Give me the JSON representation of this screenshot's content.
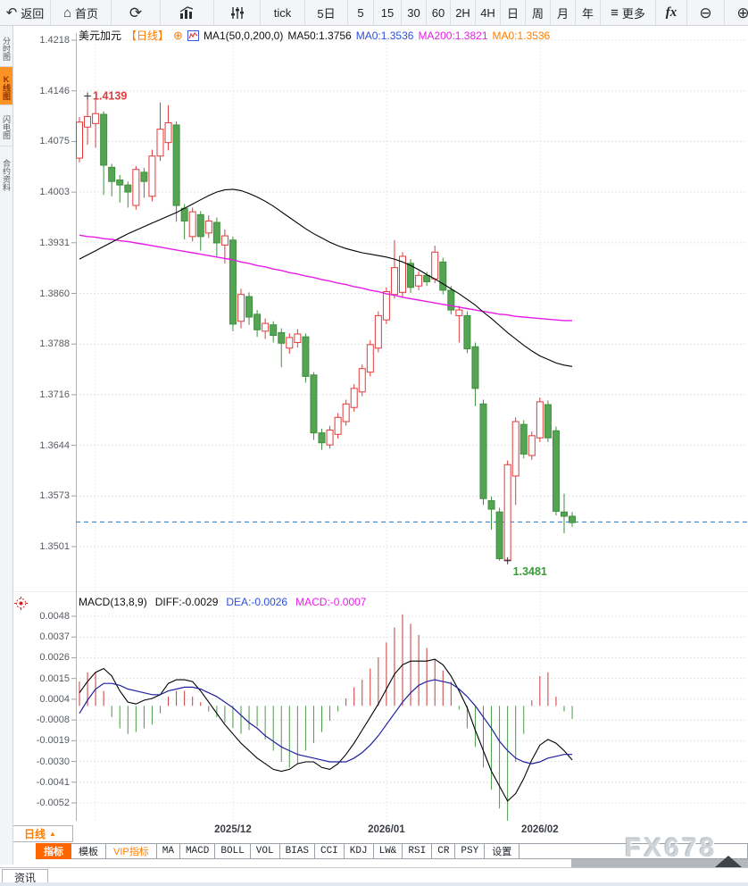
{
  "toolbar": {
    "back_label": "返回",
    "home_label": "首页",
    "tick_label": "tick",
    "intervals": [
      "5日",
      "5",
      "15",
      "30",
      "60",
      "2H",
      "4H",
      "日",
      "周",
      "月",
      "年"
    ],
    "more_label": "更多",
    "fx_label": "fx"
  },
  "icons": {
    "back": "↶",
    "home": "⌂",
    "refresh": "⟳",
    "menu": "≡",
    "zoom_out": "⊖",
    "zoom_in": "⊕",
    "add_circle": "⊕",
    "up_triangle": "▲"
  },
  "sidebar": {
    "items": [
      {
        "label": "分时图",
        "active": false
      },
      {
        "label": "K线图",
        "active": true
      },
      {
        "label": "闪电图",
        "active": false
      },
      {
        "label": "合约资料",
        "active": false
      }
    ]
  },
  "price_header": {
    "symbol": "美元加元",
    "period_tag": "【日线】",
    "ma_summary": "MA1(50,0,200,0)",
    "ma50": "MA50:1.3756",
    "ma0_blue": "MA0:1.3536",
    "ma200": "MA200:1.3821",
    "ma0_orange": "MA0:1.3536"
  },
  "macd_header": {
    "title": "MACD(13,8,9)",
    "diff": "DIFF:-0.0029",
    "dea": "DEA:-0.0026",
    "macd": "MACD:-0.0007"
  },
  "bottom": {
    "period_button": "日线",
    "tabs": [
      {
        "label": "指标"
      },
      {
        "label": "模板"
      },
      {
        "label": "VIP指标"
      },
      {
        "label": "MA"
      },
      {
        "label": "MACD"
      },
      {
        "label": "BOLL"
      },
      {
        "label": "VOL"
      },
      {
        "label": "BIAS"
      },
      {
        "label": "CCI"
      },
      {
        "label": "KDJ"
      },
      {
        "label": "LW&"
      },
      {
        "label": "RSI"
      },
      {
        "label": "CR"
      },
      {
        "label": "PSY"
      },
      {
        "label": "设置"
      }
    ],
    "news_tab": "资讯",
    "watermark": "FX678"
  },
  "colors": {
    "up": "#e23a3a",
    "down_fill": "#54a454",
    "down_stroke": "#3f8f3f",
    "ma50": "#000000",
    "ma200": "#e81ce8",
    "diff": "#000000",
    "dea": "#2020a0",
    "price_line": "#1e7ad2",
    "grid": "#dcdcdc",
    "hist_up": "#cc3b3b",
    "hist_down": "#4a9a4a",
    "annotation_high": "#e23a3a",
    "annotation_low": "#3a9a3a"
  },
  "chart_data": {
    "type": "candlestick+macd",
    "x_gridlines": [
      {
        "index": 2,
        "label": ""
      },
      {
        "index": 19,
        "label": "2025/12"
      },
      {
        "index": 38,
        "label": "2026/01"
      },
      {
        "index": 57,
        "label": "2026/02"
      }
    ],
    "panels": [
      {
        "type": "candlestick",
        "y_max": 1.4218,
        "y_min": 1.3501,
        "y_ticks": [
          "1.4218",
          "1.4146",
          "1.4075",
          "1.4003",
          "1.3931",
          "1.3860",
          "1.3788",
          "1.3716",
          "1.3644",
          "1.3573",
          "1.3501"
        ],
        "price_line": 1.3536,
        "annotations": [
          {
            "text": "1.4139",
            "candle": 1,
            "at": "high",
            "color": "#e23a3a"
          },
          {
            "text": "1.3481",
            "candle": 53,
            "at": "low",
            "color": "#3a9a3a"
          }
        ],
        "candles": [
          [
            1.4051,
            1.4109,
            1.4045,
            1.4102
          ],
          [
            1.4095,
            1.4139,
            1.407,
            1.411
          ],
          [
            1.41,
            1.4136,
            1.4066,
            1.4114
          ],
          [
            1.4113,
            1.4117,
            1.3999,
            1.4041
          ],
          [
            1.4038,
            1.4043,
            1.3997,
            1.4018
          ],
          [
            1.402,
            1.4027,
            1.3988,
            1.4013
          ],
          [
            1.4013,
            1.4018,
            1.3981,
            1.4003
          ],
          [
            1.3984,
            1.404,
            1.3978,
            1.4035
          ],
          [
            1.4031,
            1.4037,
            1.3995,
            1.4018
          ],
          [
            1.3997,
            1.4063,
            1.399,
            1.4054
          ],
          [
            1.4054,
            1.413,
            1.4047,
            1.4092
          ],
          [
            1.4073,
            1.4126,
            1.4062,
            1.4101
          ],
          [
            1.4098,
            1.4103,
            1.3961,
            1.3984
          ],
          [
            1.398,
            1.3986,
            1.3936,
            1.3962
          ],
          [
            1.394,
            1.3981,
            1.3933,
            1.3975
          ],
          [
            1.3971,
            1.3976,
            1.392,
            1.394
          ],
          [
            1.3945,
            1.397,
            1.3938,
            1.3962
          ],
          [
            1.396,
            1.3967,
            1.3912,
            1.3931
          ],
          [
            1.3928,
            1.395,
            1.3902,
            1.3941
          ],
          [
            1.3935,
            1.394,
            1.3806,
            1.3816
          ],
          [
            1.382,
            1.3866,
            1.381,
            1.3858
          ],
          [
            1.3855,
            1.3861,
            1.3815,
            1.3826
          ],
          [
            1.383,
            1.3836,
            1.3798,
            1.3808
          ],
          [
            1.3806,
            1.3824,
            1.3795,
            1.3817
          ],
          [
            1.3815,
            1.382,
            1.379,
            1.38
          ],
          [
            1.3804,
            1.381,
            1.3755,
            1.3789
          ],
          [
            1.3782,
            1.3803,
            1.3774,
            1.3797
          ],
          [
            1.379,
            1.3809,
            1.3783,
            1.3802
          ],
          [
            1.3798,
            1.3803,
            1.3733,
            1.3742
          ],
          [
            1.3744,
            1.3748,
            1.3652,
            1.3662
          ],
          [
            1.3662,
            1.3668,
            1.3638,
            1.3648
          ],
          [
            1.3645,
            1.3672,
            1.364,
            1.3666
          ],
          [
            1.366,
            1.369,
            1.3654,
            1.3684
          ],
          [
            1.3678,
            1.3709,
            1.3672,
            1.3703
          ],
          [
            1.3698,
            1.3731,
            1.3692,
            1.3725
          ],
          [
            1.372,
            1.3759,
            1.3714,
            1.3753
          ],
          [
            1.3748,
            1.3793,
            1.3742,
            1.3787
          ],
          [
            1.3782,
            1.3834,
            1.3776,
            1.3828
          ],
          [
            1.3822,
            1.3868,
            1.3816,
            1.3862
          ],
          [
            1.3858,
            1.3935,
            1.3852,
            1.3896
          ],
          [
            1.3861,
            1.3918,
            1.3855,
            1.3912
          ],
          [
            1.3902,
            1.3908,
            1.386,
            1.3868
          ],
          [
            1.387,
            1.3891,
            1.3864,
            1.3885
          ],
          [
            1.3885,
            1.389,
            1.387,
            1.3876
          ],
          [
            1.388,
            1.3927,
            1.3874,
            1.3918
          ],
          [
            1.3904,
            1.391,
            1.3858,
            1.3864
          ],
          [
            1.3864,
            1.387,
            1.383,
            1.3836
          ],
          [
            1.3828,
            1.3842,
            1.379,
            1.3836
          ],
          [
            1.3828,
            1.3834,
            1.3775,
            1.3781
          ],
          [
            1.3784,
            1.379,
            1.37,
            1.3725
          ],
          [
            1.3703,
            1.3709,
            1.356,
            1.3569
          ],
          [
            1.3566,
            1.3572,
            1.3525,
            1.3554
          ],
          [
            1.355,
            1.3556,
            1.3481,
            1.3484
          ],
          [
            1.3482,
            1.3623,
            1.3481,
            1.3617
          ],
          [
            1.3601,
            1.3684,
            1.356,
            1.3678
          ],
          [
            1.3674,
            1.368,
            1.3626,
            1.3632
          ],
          [
            1.363,
            1.3664,
            1.3624,
            1.3658
          ],
          [
            1.3655,
            1.3712,
            1.3649,
            1.3706
          ],
          [
            1.3702,
            1.3708,
            1.3649,
            1.3655
          ],
          [
            1.3665,
            1.3671,
            1.3545,
            1.3551
          ],
          [
            1.355,
            1.3576,
            1.352,
            1.3544
          ],
          [
            1.3544,
            1.355,
            1.3529,
            1.3535
          ]
        ],
        "ma50": [
          1.3908,
          1.3914,
          1.392,
          1.3926,
          1.3932,
          1.3938,
          1.3944,
          1.3949,
          1.3954,
          1.3959,
          1.3964,
          1.3969,
          1.3974,
          1.398,
          1.3986,
          1.3992,
          1.3998,
          1.4003,
          1.4006,
          1.4007,
          1.4005,
          1.4001,
          1.3996,
          1.399,
          1.3983,
          1.3975,
          1.3967,
          1.3959,
          1.3951,
          1.3944,
          1.3938,
          1.3932,
          1.3927,
          1.3923,
          1.392,
          1.3917,
          1.3915,
          1.3913,
          1.3911,
          1.3908,
          1.3904,
          1.3899,
          1.3893,
          1.3886,
          1.388,
          1.3873,
          1.3866,
          1.3859,
          1.3851,
          1.3843,
          1.3833,
          1.3824,
          1.3814,
          1.3804,
          1.3795,
          1.3786,
          1.3778,
          1.3771,
          1.3766,
          1.3761,
          1.3758,
          1.3756
        ],
        "ma200": [
          1.3942,
          1.394,
          1.3939,
          1.3937,
          1.3936,
          1.3934,
          1.3933,
          1.3931,
          1.3929,
          1.3927,
          1.3925,
          1.3923,
          1.3921,
          1.3919,
          1.3917,
          1.3915,
          1.3913,
          1.3911,
          1.3909,
          1.3907,
          1.3904,
          1.3902,
          1.3899,
          1.3897,
          1.3894,
          1.3892,
          1.3889,
          1.3887,
          1.3884,
          1.3882,
          1.3879,
          1.3877,
          1.3874,
          1.3872,
          1.3869,
          1.3867,
          1.3864,
          1.3862,
          1.3859,
          1.3857,
          1.3854,
          1.3852,
          1.385,
          1.3848,
          1.3846,
          1.3844,
          1.3842,
          1.384,
          1.3838,
          1.3836,
          1.3834,
          1.3832,
          1.383,
          1.3829,
          1.3827,
          1.3826,
          1.3825,
          1.3824,
          1.3823,
          1.3822,
          1.3821,
          1.3821
        ]
      },
      {
        "type": "macd",
        "y_max": 0.0048,
        "y_min": -0.0052,
        "y_ticks": [
          "0.0048",
          "0.0037",
          "0.0026",
          "0.0015",
          "0.0004",
          "-0.0008",
          "-0.0019",
          "-0.0030",
          "-0.0041",
          "-0.0052"
        ],
        "histogram": [
          0.0013,
          0.0018,
          0.0018,
          0.0008,
          -0.0006,
          -0.0012,
          -0.0015,
          -0.0014,
          -0.0012,
          -0.001,
          -0.0004,
          0.0005,
          0.0008,
          0.0008,
          0.0005,
          0.0002,
          -0.0003,
          -0.0006,
          -0.0009,
          -0.0012,
          -0.0015,
          -0.0013,
          -0.0011,
          -0.0018,
          -0.0024,
          -0.003,
          -0.0033,
          -0.0031,
          -0.0024,
          -0.002,
          -0.0014,
          -0.0008,
          -0.0003,
          0.0004,
          0.001,
          0.0014,
          0.002,
          0.0026,
          0.0034,
          0.0042,
          0.0049,
          0.0044,
          0.0038,
          0.0031,
          0.0025,
          0.0019,
          0.0013,
          -0.0002,
          -0.0012,
          -0.0022,
          -0.0033,
          -0.0045,
          -0.0055,
          -0.0063,
          -0.003,
          -0.0015,
          0.0003,
          0.0016,
          0.0018,
          0.0005,
          -0.0003,
          -0.0007
        ],
        "diff": [
          0.0007,
          0.0013,
          0.0018,
          0.002,
          0.0016,
          0.0008,
          0.0002,
          0.0001,
          0.0003,
          0.0004,
          0.0006,
          0.0012,
          0.0014,
          0.0014,
          0.0013,
          0.0008,
          0.0002,
          -0.0004,
          -0.001,
          -0.0015,
          -0.002,
          -0.0024,
          -0.0028,
          -0.0031,
          -0.0034,
          -0.0035,
          -0.0034,
          -0.0031,
          -0.003,
          -0.003,
          -0.0033,
          -0.0034,
          -0.0031,
          -0.0026,
          -0.002,
          -0.0013,
          -0.0006,
          0.0001,
          0.0009,
          0.0017,
          0.0022,
          0.0024,
          0.0024,
          0.0024,
          0.0025,
          0.0022,
          0.0016,
          0.0008,
          -0.0001,
          -0.0013,
          -0.0024,
          -0.0035,
          -0.0043,
          -0.0051,
          -0.0047,
          -0.0039,
          -0.0029,
          -0.0021,
          -0.0018,
          -0.002,
          -0.0024,
          -0.0029
        ],
        "dea": [
          -0.0004,
          0.0003,
          0.0009,
          0.0012,
          0.0012,
          0.0011,
          0.0009,
          0.0008,
          0.0007,
          0.0006,
          0.0006,
          0.0008,
          0.0009,
          0.001,
          0.001,
          0.0009,
          0.0007,
          0.0005,
          0.0002,
          -0.0001,
          -0.0005,
          -0.0009,
          -0.0012,
          -0.0016,
          -0.0019,
          -0.0022,
          -0.0024,
          -0.0026,
          -0.0027,
          -0.0028,
          -0.0029,
          -0.003,
          -0.003,
          -0.003,
          -0.0028,
          -0.0025,
          -0.0021,
          -0.0016,
          -0.001,
          -0.0004,
          0.0002,
          0.0007,
          0.0011,
          0.0013,
          0.0014,
          0.0013,
          0.0012,
          0.0009,
          0.0005,
          0.0,
          -0.0006,
          -0.0012,
          -0.0019,
          -0.0024,
          -0.0028,
          -0.003,
          -0.0031,
          -0.003,
          -0.0028,
          -0.0027,
          -0.0026,
          -0.0026
        ]
      }
    ]
  }
}
